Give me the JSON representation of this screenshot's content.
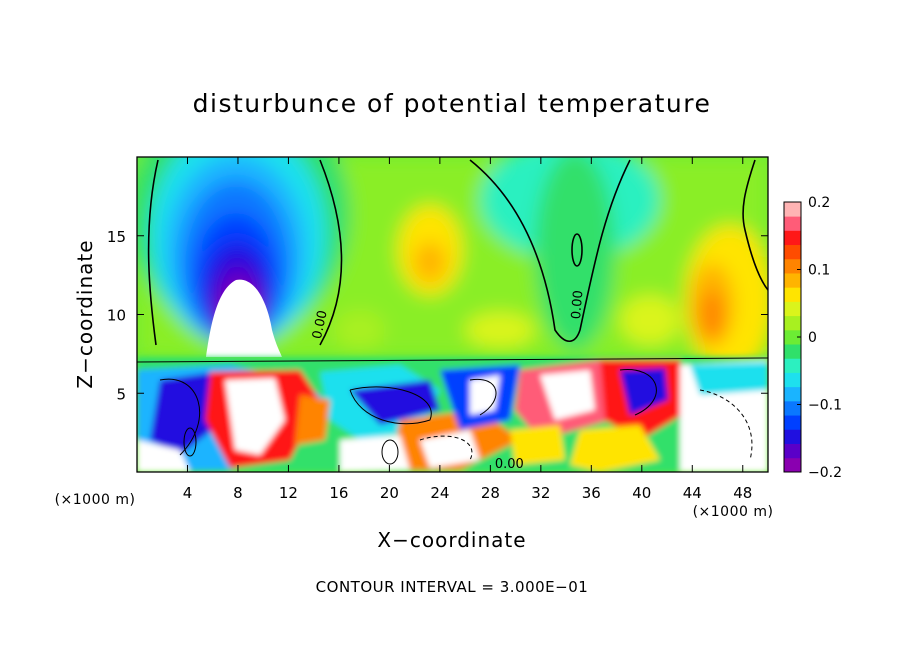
{
  "chart_data": {
    "type": "heatmap",
    "title": "disturbunce of potential temperature",
    "xlabel": "X−coordinate",
    "ylabel": "Z−coordinate",
    "x_unit_left": "(×1000 m)",
    "x_unit_right": "(×1000 m)",
    "xlim": [
      0,
      50
    ],
    "ylim": [
      0,
      20
    ],
    "x_ticks": [
      4,
      8,
      12,
      16,
      20,
      24,
      28,
      32,
      36,
      40,
      44,
      48
    ],
    "x_tick_labels": [
      "4",
      "8",
      "12",
      "16",
      "20",
      "24",
      "28",
      "32",
      "36",
      "40",
      "44",
      "48"
    ],
    "y_ticks": [
      5,
      10,
      15
    ],
    "y_tick_labels": [
      "5",
      "10",
      "15"
    ],
    "colorbar": {
      "range": [
        -0.2,
        0.2
      ],
      "tick_values": [
        0.2,
        0.1,
        0,
        -0.1,
        -0.2
      ],
      "tick_labels": [
        "0.2",
        "0.1",
        "0",
        "−0.1",
        "−0.2"
      ],
      "colors": [
        "#8a00b0",
        "#5a00c8",
        "#2010e0",
        "#0040ff",
        "#0a78ff",
        "#1ab4ff",
        "#1ee0ee",
        "#2cf0c0",
        "#30e06a",
        "#6cec34",
        "#a8f020",
        "#daf41c",
        "#ffe400",
        "#ffb400",
        "#ff8400",
        "#ff4c00",
        "#ff1818",
        "#ff5c78",
        "#ffb4b4"
      ]
    },
    "contour_labels": [
      {
        "text": "0.00",
        "x": 14.8,
        "z": 9.3,
        "rotate": -78
      },
      {
        "text": "0.00",
        "x": 35.2,
        "z": 10.6,
        "rotate": -85
      },
      {
        "text": "0.00",
        "x": 29.5,
        "z": 0.25,
        "rotate": 0
      }
    ],
    "footer": "CONTOUR INTERVAL = 3.000E−01"
  }
}
